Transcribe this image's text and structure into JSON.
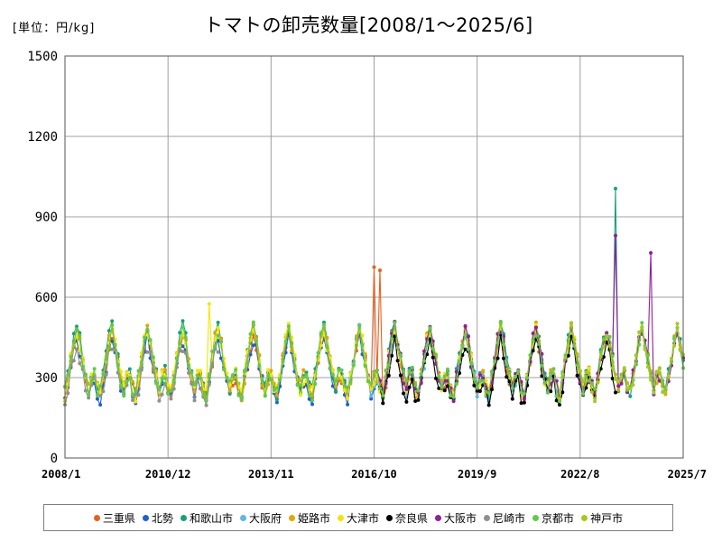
{
  "chart_data": {
    "type": "line",
    "title": "トマトの卸売数量[2008/1～2025/6]",
    "unit_label": "[単位：円/kg]",
    "x_range": [
      2008.0,
      2025.5
    ],
    "ylim": [
      0,
      1500
    ],
    "y_ticks": [
      0,
      300,
      600,
      900,
      1200,
      1500
    ],
    "x_ticks": [
      {
        "label": "2008/1",
        "value": 2008.0
      },
      {
        "label": "2010/12",
        "value": 2010.917
      },
      {
        "label": "2013/11",
        "value": 2013.833
      },
      {
        "label": "2016/10",
        "value": 2016.75
      },
      {
        "label": "2019/9",
        "value": 2019.667
      },
      {
        "label": "2022/8",
        "value": 2022.583
      },
      {
        "label": "2025/7",
        "value": 2025.5
      }
    ],
    "grid": true,
    "legend_position": "bottom",
    "series": [
      {
        "name": "三重県",
        "color": "#E8601C",
        "range": [
          2008.0,
          2021.9
        ],
        "scale": 0.97,
        "spikes": [
          {
            "x": 2016.75,
            "y": 712
          },
          {
            "x": 2016.9,
            "y": 700
          }
        ]
      },
      {
        "name": "北勢",
        "color": "#1F5FD6",
        "range": [
          2008.0,
          2016.8
        ],
        "scale": 0.93,
        "spikes": []
      },
      {
        "name": "和歌山市",
        "color": "#18A07A",
        "range": [
          2008.0,
          2025.5
        ],
        "scale": 1.02,
        "spikes": [
          {
            "x": 2023.58,
            "y": 1005
          }
        ]
      },
      {
        "name": "大阪府",
        "color": "#5BB8E8",
        "range": [
          2016.0,
          2022.2
        ],
        "scale": 0.98,
        "spikes": []
      },
      {
        "name": "姫路市",
        "color": "#E0A800",
        "range": [
          2008.0,
          2025.5
        ],
        "scale": 1.0,
        "spikes": []
      },
      {
        "name": "大津市",
        "color": "#F2E600",
        "range": [
          2008.0,
          2022.9
        ],
        "scale": 1.0,
        "spikes": [
          {
            "x": 2012.1,
            "y": 575
          }
        ]
      },
      {
        "name": "奈良県",
        "color": "#000000",
        "range": [
          2016.9,
          2023.6
        ],
        "scale": 0.9,
        "spikes": []
      },
      {
        "name": "大阪市",
        "color": "#8E1F9E",
        "range": [
          2016.8,
          2025.5
        ],
        "scale": 1.0,
        "spikes": [
          {
            "x": 2023.58,
            "y": 830
          },
          {
            "x": 2024.58,
            "y": 765
          }
        ]
      },
      {
        "name": "尼崎市",
        "color": "#909090",
        "range": [
          2008.0,
          2012.3
        ],
        "scale": 0.88,
        "spikes": []
      },
      {
        "name": "京都市",
        "color": "#5ECB4A",
        "range": [
          2008.0,
          2025.5
        ],
        "scale": 1.0,
        "spikes": []
      },
      {
        "name": "神戸市",
        "color": "#A8C81E",
        "range": [
          2022.0,
          2025.5
        ],
        "scale": 1.0,
        "spikes": []
      }
    ],
    "seasonal_profile": [
      240,
      300,
      370,
      440,
      480,
      430,
      360,
      300,
      260,
      300,
      310,
      260
    ]
  }
}
